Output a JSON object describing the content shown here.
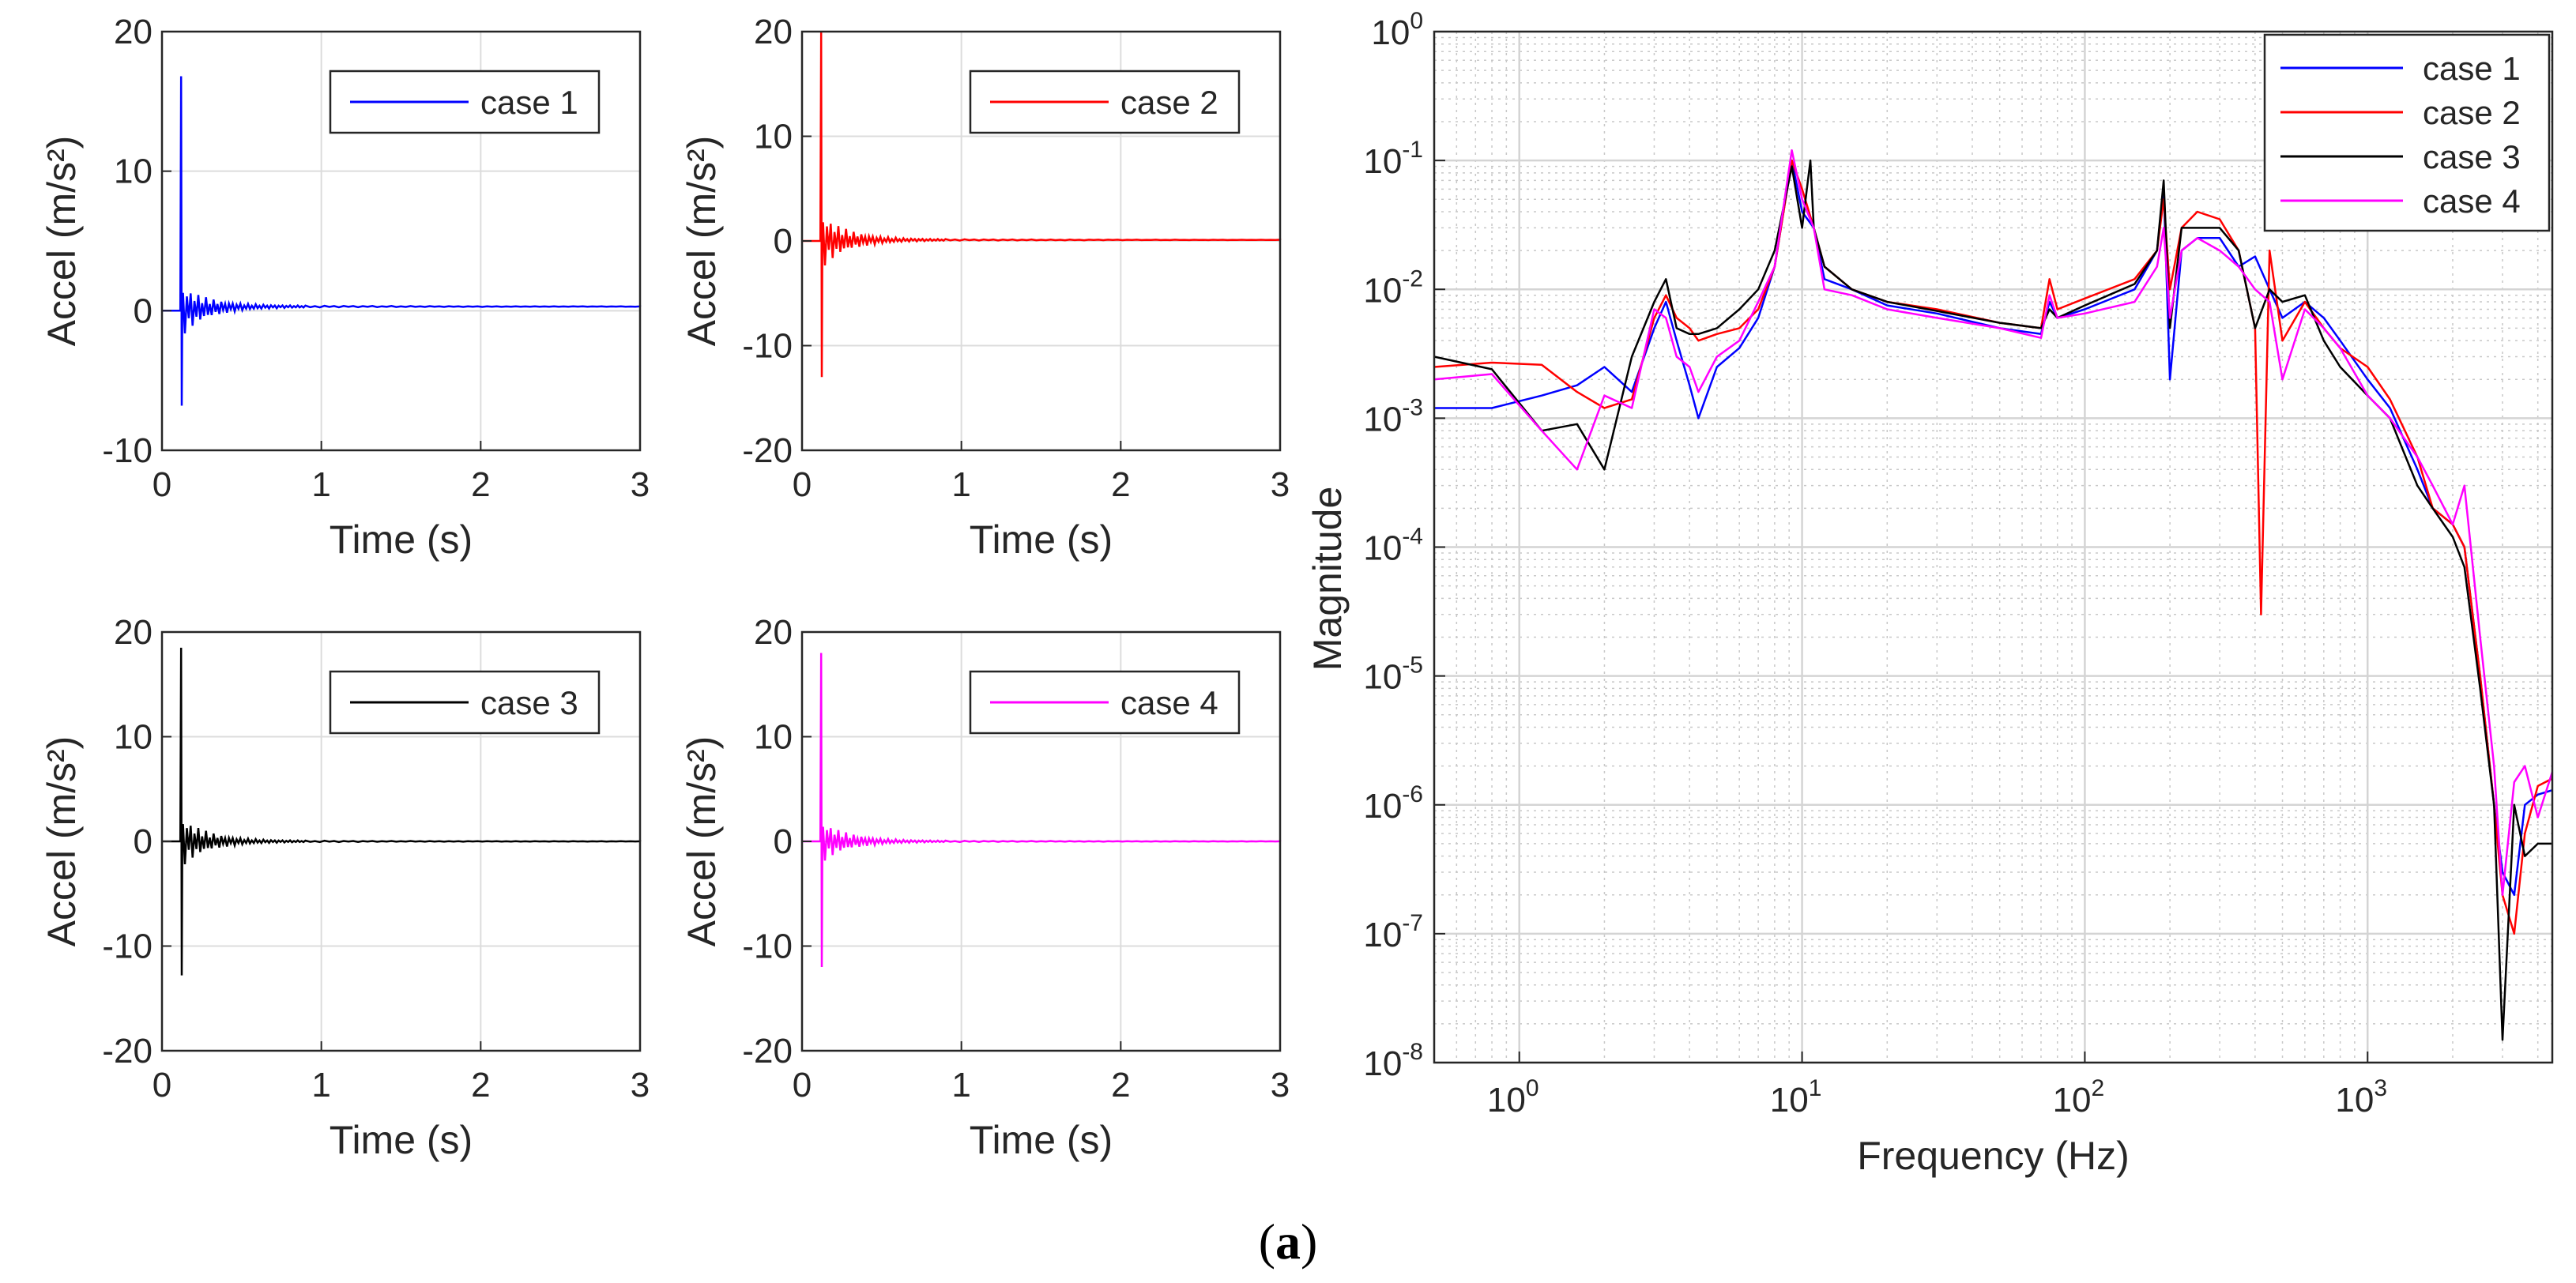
{
  "caption": {
    "open": "(",
    "label": "a",
    "close": ")"
  },
  "chart_data": [
    {
      "type": "line",
      "title": "",
      "xlabel": "Time (s)",
      "ylabel": "Accel (m/s²)",
      "xlim": [
        0,
        3
      ],
      "ylim": [
        -10,
        20
      ],
      "xticks": [
        0,
        1,
        2,
        3
      ],
      "yticks": [
        -10,
        0,
        10,
        20
      ],
      "grid": true,
      "legend_position": "top-right",
      "series": [
        {
          "name": "case 1",
          "color": "#0000ff",
          "impulse": {
            "t0": 0.12,
            "peak": 16.8,
            "trough": -6.8,
            "ringing_amplitude": 1.8,
            "tail_level": 0.3
          }
        }
      ]
    },
    {
      "type": "line",
      "title": "",
      "xlabel": "Time (s)",
      "ylabel": "Accel (m/s²)",
      "xlim": [
        0,
        3
      ],
      "ylim": [
        -20,
        20
      ],
      "xticks": [
        0,
        1,
        2,
        3
      ],
      "yticks": [
        -20,
        -10,
        0,
        10,
        20
      ],
      "grid": true,
      "legend_position": "top-right",
      "series": [
        {
          "name": "case 2",
          "color": "#ff0000",
          "impulse": {
            "t0": 0.12,
            "peak": 20,
            "trough": -13,
            "ringing_amplitude": 2.6,
            "tail_level": 0.1
          }
        }
      ]
    },
    {
      "type": "line",
      "title": "",
      "xlabel": "Time (s)",
      "ylabel": "Accel (m/s²)",
      "xlim": [
        0,
        3
      ],
      "ylim": [
        -20,
        20
      ],
      "xticks": [
        0,
        1,
        2,
        3
      ],
      "yticks": [
        -20,
        -10,
        0,
        10,
        20
      ],
      "grid": true,
      "legend_position": "top-right",
      "series": [
        {
          "name": "case 3",
          "color": "#000000",
          "impulse": {
            "t0": 0.12,
            "peak": 18.5,
            "trough": -12.8,
            "ringing_amplitude": 2.4,
            "tail_level": 0.0
          }
        }
      ]
    },
    {
      "type": "line",
      "title": "",
      "xlabel": "Time (s)",
      "ylabel": "Accel (m/s²)",
      "xlim": [
        0,
        3
      ],
      "ylim": [
        -20,
        20
      ],
      "xticks": [
        0,
        1,
        2,
        3
      ],
      "yticks": [
        -20,
        -10,
        0,
        10,
        20
      ],
      "grid": true,
      "legend_position": "top-right",
      "series": [
        {
          "name": "case 4",
          "color": "#ff00ff",
          "impulse": {
            "t0": 0.12,
            "peak": 18,
            "trough": -12,
            "ringing_amplitude": 2.0,
            "tail_level": 0.0
          }
        }
      ]
    },
    {
      "type": "line",
      "title": "",
      "xlabel": "Frequency (Hz)",
      "ylabel": "Magnitude",
      "xscale": "log",
      "yscale": "log",
      "xlim": [
        0.5,
        4500
      ],
      "ylim": [
        1e-08,
        1
      ],
      "xticks": [
        {
          "base": "10",
          "exp": "0"
        },
        {
          "base": "10",
          "exp": "1"
        },
        {
          "base": "10",
          "exp": "2"
        },
        {
          "base": "10",
          "exp": "3"
        }
      ],
      "yticks": [
        {
          "base": "10",
          "exp": "-8"
        },
        {
          "base": "10",
          "exp": "-7"
        },
        {
          "base": "10",
          "exp": "-6"
        },
        {
          "base": "10",
          "exp": "-5"
        },
        {
          "base": "10",
          "exp": "-4"
        },
        {
          "base": "10",
          "exp": "-3"
        },
        {
          "base": "10",
          "exp": "-2"
        },
        {
          "base": "10",
          "exp": "-1"
        },
        {
          "base": "10",
          "exp": "0"
        }
      ],
      "grid": true,
      "minor_grid": true,
      "legend_position": "top-right",
      "series": [
        {
          "name": "case 1",
          "color": "#0000ff",
          "points": [
            [
              0.5,
              0.0012
            ],
            [
              0.8,
              0.0012
            ],
            [
              1.2,
              0.0015
            ],
            [
              1.6,
              0.0018
            ],
            [
              2.0,
              0.0025
            ],
            [
              2.5,
              0.0016
            ],
            [
              3.0,
              0.005
            ],
            [
              3.3,
              0.008
            ],
            [
              3.6,
              0.004
            ],
            [
              4.0,
              0.0018
            ],
            [
              4.3,
              0.001
            ],
            [
              5,
              0.0025
            ],
            [
              6,
              0.0035
            ],
            [
              7,
              0.006
            ],
            [
              8,
              0.015
            ],
            [
              9.2,
              0.1
            ],
            [
              10,
              0.04
            ],
            [
              11,
              0.03
            ],
            [
              12,
              0.012
            ],
            [
              15,
              0.01
            ],
            [
              20,
              0.0075
            ],
            [
              30,
              0.0065
            ],
            [
              50,
              0.005
            ],
            [
              70,
              0.0045
            ],
            [
              75,
              0.008
            ],
            [
              80,
              0.006
            ],
            [
              100,
              0.007
            ],
            [
              150,
              0.01
            ],
            [
              180,
              0.02
            ],
            [
              190,
              0.06
            ],
            [
              200,
              0.002
            ],
            [
              220,
              0.02
            ],
            [
              250,
              0.025
            ],
            [
              300,
              0.025
            ],
            [
              350,
              0.015
            ],
            [
              400,
              0.018
            ],
            [
              450,
              0.01
            ],
            [
              500,
              0.006
            ],
            [
              600,
              0.008
            ],
            [
              700,
              0.006
            ],
            [
              800,
              0.004
            ],
            [
              1000,
              0.002
            ],
            [
              1200,
              0.0012
            ],
            [
              1500,
              0.0004
            ],
            [
              1700,
              0.0002
            ],
            [
              2000,
              0.00015
            ],
            [
              2200,
              0.0001
            ],
            [
              2500,
              1e-05
            ],
            [
              2800,
              1e-06
            ],
            [
              3000,
              3e-07
            ],
            [
              3300,
              2e-07
            ],
            [
              3600,
              1e-06
            ],
            [
              4000,
              1.2e-06
            ],
            [
              4500,
              1.3e-06
            ]
          ]
        },
        {
          "name": "case 2",
          "color": "#ff0000",
          "points": [
            [
              0.5,
              0.0025
            ],
            [
              0.8,
              0.0027
            ],
            [
              1.2,
              0.0026
            ],
            [
              1.6,
              0.0016
            ],
            [
              2.0,
              0.0012
            ],
            [
              2.5,
              0.0014
            ],
            [
              3.0,
              0.006
            ],
            [
              3.3,
              0.009
            ],
            [
              3.6,
              0.006
            ],
            [
              4.0,
              0.005
            ],
            [
              4.3,
              0.004
            ],
            [
              5,
              0.0045
            ],
            [
              6,
              0.005
            ],
            [
              7,
              0.007
            ],
            [
              8,
              0.015
            ],
            [
              9.2,
              0.1
            ],
            [
              10,
              0.06
            ],
            [
              11,
              0.03
            ],
            [
              12,
              0.015
            ],
            [
              15,
              0.01
            ],
            [
              20,
              0.008
            ],
            [
              30,
              0.007
            ],
            [
              50,
              0.0055
            ],
            [
              70,
              0.005
            ],
            [
              75,
              0.012
            ],
            [
              80,
              0.007
            ],
            [
              100,
              0.0085
            ],
            [
              150,
              0.012
            ],
            [
              180,
              0.02
            ],
            [
              190,
              0.05
            ],
            [
              200,
              0.01
            ],
            [
              220,
              0.03
            ],
            [
              250,
              0.04
            ],
            [
              300,
              0.035
            ],
            [
              350,
              0.02
            ],
            [
              400,
              0.005
            ],
            [
              420,
              3e-05
            ],
            [
              450,
              0.02
            ],
            [
              500,
              0.004
            ],
            [
              600,
              0.008
            ],
            [
              700,
              0.005
            ],
            [
              800,
              0.0035
            ],
            [
              1000,
              0.0025
            ],
            [
              1200,
              0.0014
            ],
            [
              1500,
              0.0005
            ],
            [
              1700,
              0.0002
            ],
            [
              2000,
              0.00015
            ],
            [
              2200,
              0.0001
            ],
            [
              2500,
              1e-05
            ],
            [
              2800,
              1e-06
            ],
            [
              3000,
              2e-07
            ],
            [
              3300,
              1e-07
            ],
            [
              3600,
              6e-07
            ],
            [
              4000,
              1.4e-06
            ],
            [
              4500,
              1.6e-06
            ]
          ]
        },
        {
          "name": "case 3",
          "color": "#000000",
          "points": [
            [
              0.5,
              0.003
            ],
            [
              0.8,
              0.0024
            ],
            [
              1.2,
              0.0008
            ],
            [
              1.6,
              0.0009
            ],
            [
              2.0,
              0.0004
            ],
            [
              2.5,
              0.003
            ],
            [
              3.0,
              0.008
            ],
            [
              3.3,
              0.012
            ],
            [
              3.6,
              0.005
            ],
            [
              4.0,
              0.0045
            ],
            [
              4.3,
              0.0045
            ],
            [
              5,
              0.005
            ],
            [
              6,
              0.007
            ],
            [
              7,
              0.01
            ],
            [
              8,
              0.02
            ],
            [
              9.2,
              0.09
            ],
            [
              10,
              0.03
            ],
            [
              10.7,
              0.1
            ],
            [
              11,
              0.03
            ],
            [
              12,
              0.015
            ],
            [
              15,
              0.01
            ],
            [
              20,
              0.008
            ],
            [
              30,
              0.0068
            ],
            [
              50,
              0.0055
            ],
            [
              70,
              0.005
            ],
            [
              75,
              0.007
            ],
            [
              80,
              0.006
            ],
            [
              100,
              0.0075
            ],
            [
              150,
              0.011
            ],
            [
              180,
              0.02
            ],
            [
              190,
              0.07
            ],
            [
              200,
              0.005
            ],
            [
              220,
              0.03
            ],
            [
              250,
              0.03
            ],
            [
              300,
              0.03
            ],
            [
              350,
              0.02
            ],
            [
              400,
              0.005
            ],
            [
              450,
              0.01
            ],
            [
              500,
              0.008
            ],
            [
              600,
              0.009
            ],
            [
              700,
              0.004
            ],
            [
              800,
              0.0025
            ],
            [
              1000,
              0.0015
            ],
            [
              1200,
              0.001
            ],
            [
              1500,
              0.0003
            ],
            [
              1700,
              0.0002
            ],
            [
              2000,
              0.00012
            ],
            [
              2200,
              7e-05
            ],
            [
              2500,
              8e-06
            ],
            [
              2800,
              1e-06
            ],
            [
              3000,
              1.5e-08
            ],
            [
              3300,
              1e-06
            ],
            [
              3600,
              4e-07
            ],
            [
              4000,
              5e-07
            ],
            [
              4500,
              5e-07
            ]
          ]
        },
        {
          "name": "case 4",
          "color": "#ff00ff",
          "points": [
            [
              0.5,
              0.002
            ],
            [
              0.8,
              0.0022
            ],
            [
              1.2,
              0.0008
            ],
            [
              1.6,
              0.0004
            ],
            [
              2.0,
              0.0015
            ],
            [
              2.5,
              0.0012
            ],
            [
              3.0,
              0.007
            ],
            [
              3.3,
              0.006
            ],
            [
              3.6,
              0.003
            ],
            [
              4.0,
              0.0025
            ],
            [
              4.3,
              0.0016
            ],
            [
              5,
              0.003
            ],
            [
              6,
              0.004
            ],
            [
              7,
              0.008
            ],
            [
              8,
              0.015
            ],
            [
              9.2,
              0.12
            ],
            [
              10,
              0.05
            ],
            [
              11,
              0.03
            ],
            [
              12,
              0.01
            ],
            [
              15,
              0.009
            ],
            [
              20,
              0.007
            ],
            [
              30,
              0.006
            ],
            [
              50,
              0.005
            ],
            [
              70,
              0.0042
            ],
            [
              75,
              0.009
            ],
            [
              80,
              0.006
            ],
            [
              100,
              0.0065
            ],
            [
              150,
              0.008
            ],
            [
              180,
              0.015
            ],
            [
              190,
              0.03
            ],
            [
              200,
              0.006
            ],
            [
              220,
              0.02
            ],
            [
              250,
              0.025
            ],
            [
              300,
              0.02
            ],
            [
              350,
              0.015
            ],
            [
              400,
              0.01
            ],
            [
              450,
              0.008
            ],
            [
              500,
              0.002
            ],
            [
              600,
              0.007
            ],
            [
              700,
              0.005
            ],
            [
              800,
              0.0035
            ],
            [
              1000,
              0.0015
            ],
            [
              1200,
              0.001
            ],
            [
              1500,
              0.0005
            ],
            [
              1700,
              0.0003
            ],
            [
              2000,
              0.00015
            ],
            [
              2200,
              0.0003
            ],
            [
              2500,
              2e-05
            ],
            [
              2800,
              2e-06
            ],
            [
              3000,
              2e-07
            ],
            [
              3300,
              1.5e-06
            ],
            [
              3600,
              2e-06
            ],
            [
              4000,
              8e-07
            ],
            [
              4500,
              1.8e-06
            ]
          ]
        }
      ]
    }
  ]
}
